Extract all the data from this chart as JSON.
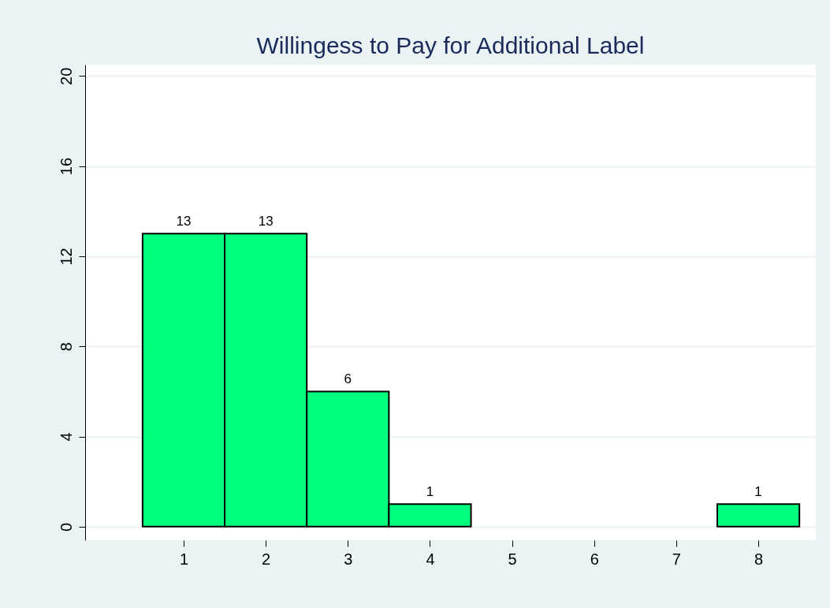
{
  "chart_data": {
    "type": "histogram",
    "title": "Willingess to Pay for Additional Label",
    "bins": [
      0.5,
      1.5,
      2.5,
      3.5,
      4.5,
      5.5,
      6.5,
      7.5,
      8.5
    ],
    "values": [
      13,
      13,
      6,
      1,
      0,
      0,
      0,
      1
    ],
    "value_labels": [
      "13",
      "13",
      "6",
      "1",
      null,
      null,
      null,
      "1"
    ],
    "color": "#00ff7f",
    "xlim": [
      -0.2,
      8.7
    ],
    "xticks": [
      1,
      2,
      3,
      4,
      5,
      6,
      7,
      8
    ],
    "ylim": [
      -0.6,
      20.5
    ],
    "yticks": [
      0,
      4,
      8,
      12,
      16,
      20
    ],
    "grid": "y"
  }
}
